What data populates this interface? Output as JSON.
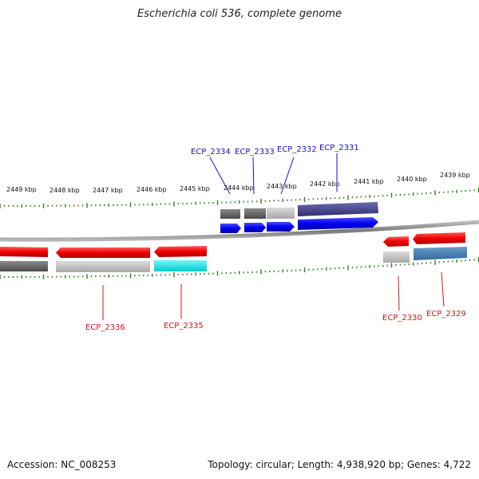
{
  "title": "Escherichia coli 536, complete genome",
  "footer": {
    "accession": "Accession: NC_008253",
    "topology": "Topology: circular; Length: 4,938,920 bp; Genes: 4,722"
  },
  "colors": {
    "backbone": "#8a8a8a",
    "tick": "#2e7d1e",
    "forward_label": "#1515c8",
    "reverse_label": "#cc1a1a"
  },
  "scale_labels": [
    "2449 kbp",
    "2448 kbp",
    "2447 kbp",
    "2446 kbp",
    "2445 kbp",
    "2444 kbp",
    "2443 kbp",
    "2442 kbp",
    "2441 kbp",
    "2440 kbp",
    "2439 kbp"
  ],
  "gene_labels": {
    "forward": [
      "ECP_2334",
      "ECP_2333",
      "ECP_2332",
      "ECP_2331"
    ],
    "reverse": [
      "ECP_2336",
      "ECP_2335",
      "ECP_2330",
      "ECP_2329"
    ]
  }
}
